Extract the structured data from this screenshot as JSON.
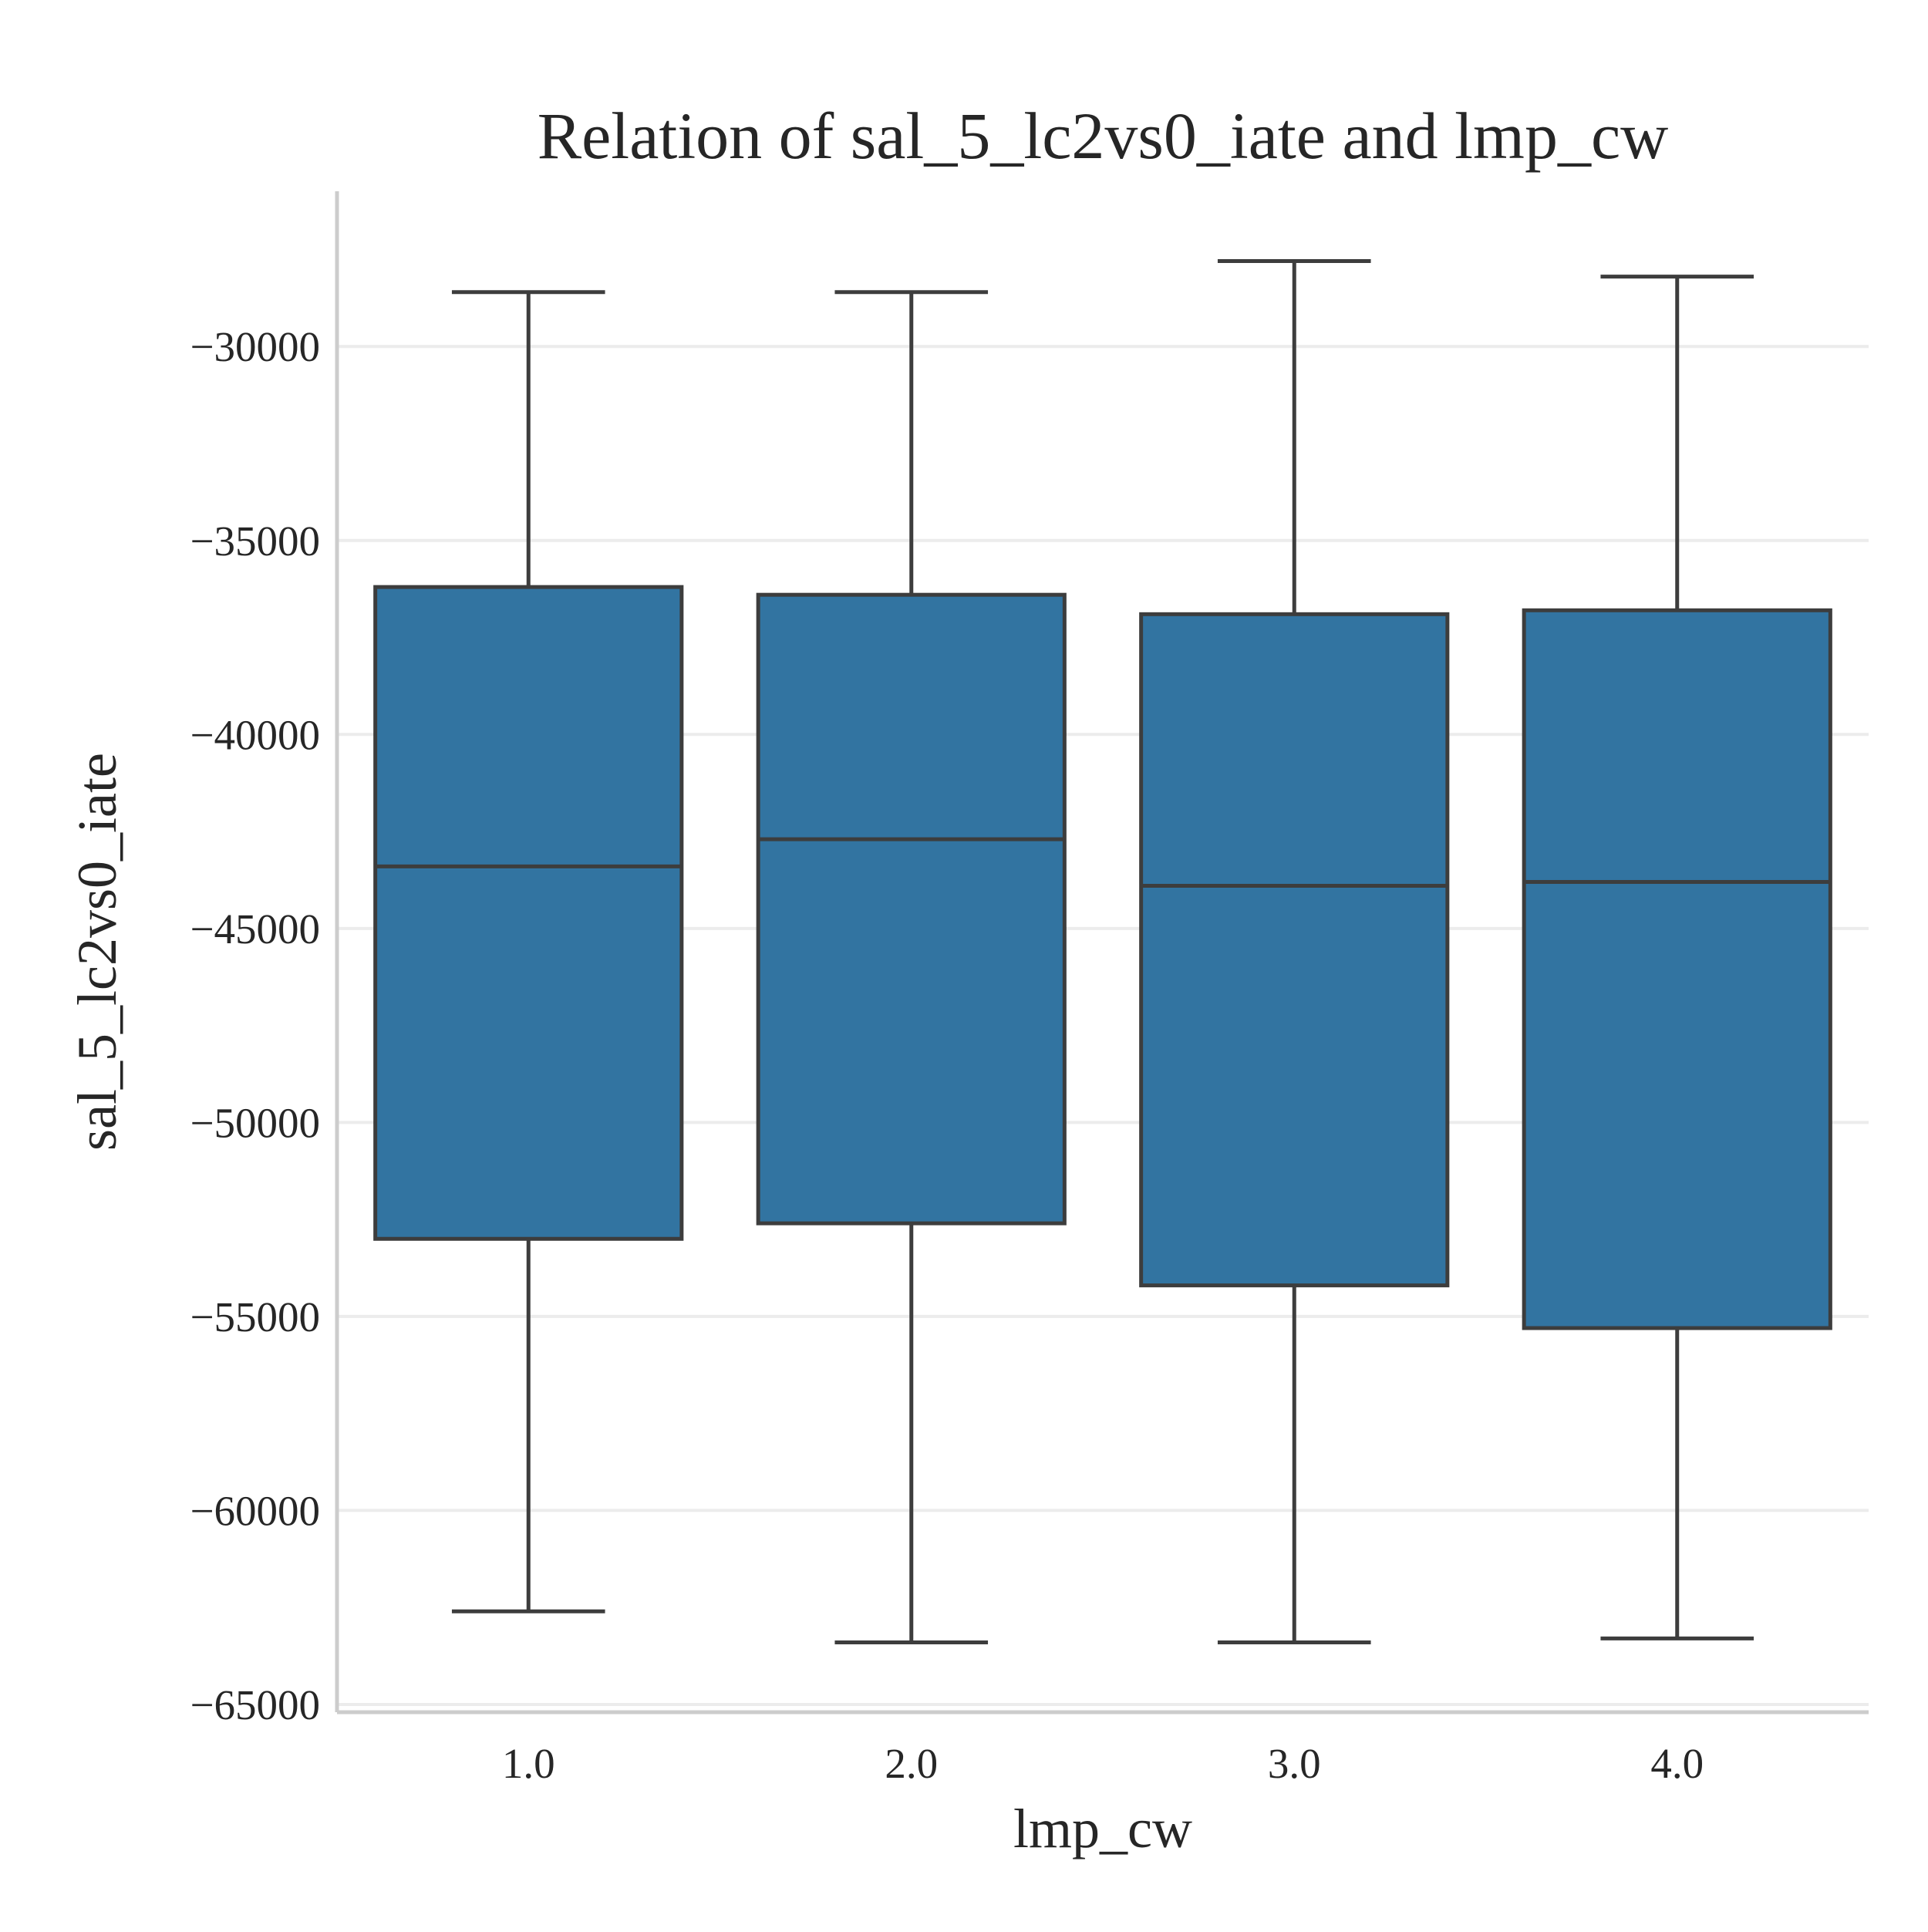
{
  "chart_data": {
    "type": "box",
    "title": "Relation of sal_5_lc2vs0_iate and lmp_cw",
    "xlabel": "lmp_cw",
    "ylabel": "sal_5_lc2vs0_iate",
    "categories": [
      "1.0",
      "2.0",
      "3.0",
      "4.0"
    ],
    "ylim": [
      -65200,
      -26000
    ],
    "yticks": [
      -30000,
      -35000,
      -40000,
      -45000,
      -50000,
      -55000,
      -60000,
      -65000
    ],
    "ytick_labels": [
      "−30000",
      "−35000",
      "−40000",
      "−45000",
      "−50000",
      "−55000",
      "−60000",
      "−65000"
    ],
    "grid": "horizontal",
    "boxes": [
      {
        "category": "1.0",
        "whisker_low": -62600,
        "q1": -53000,
        "median": -43400,
        "q3": -36200,
        "whisker_high": -28600
      },
      {
        "category": "2.0",
        "whisker_low": -63400,
        "q1": -52600,
        "median": -42700,
        "q3": -36400,
        "whisker_high": -28600
      },
      {
        "category": "3.0",
        "whisker_low": -63400,
        "q1": -54200,
        "median": -43900,
        "q3": -36900,
        "whisker_high": -27800
      },
      {
        "category": "4.0",
        "whisker_low": -63300,
        "q1": -55300,
        "median": -43800,
        "q3": -36800,
        "whisker_high": -28200
      }
    ],
    "colors": {
      "box_fill": "#3274a1",
      "box_edge": "#3d3d3d",
      "grid": "#ececec",
      "spine": "#cccccc",
      "text": "#262626"
    }
  }
}
